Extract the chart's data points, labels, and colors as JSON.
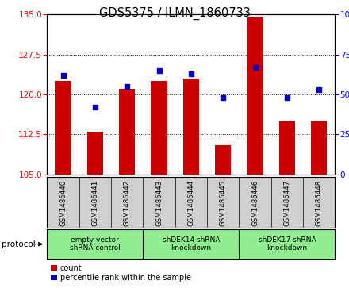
{
  "title": "GDS5375 / ILMN_1860733",
  "samples": [
    "GSM1486440",
    "GSM1486441",
    "GSM1486442",
    "GSM1486443",
    "GSM1486444",
    "GSM1486445",
    "GSM1486446",
    "GSM1486447",
    "GSM1486448"
  ],
  "count_values": [
    122.5,
    113.0,
    121.0,
    122.5,
    123.0,
    110.5,
    134.5,
    115.0,
    115.0
  ],
  "percentile_values": [
    62,
    42,
    55,
    65,
    63,
    48,
    67,
    48,
    53
  ],
  "ylim_left": [
    105,
    135
  ],
  "ylim_right": [
    0,
    100
  ],
  "yticks_left": [
    105,
    112.5,
    120,
    127.5,
    135
  ],
  "yticks_right": [
    0,
    25,
    50,
    75,
    100
  ],
  "groups": [
    {
      "label": "empty vector\nshRNA control",
      "start": 0,
      "end": 3
    },
    {
      "label": "shDEK14 shRNA\nknockdown",
      "start": 3,
      "end": 6
    },
    {
      "label": "shDEK17 shRNA\nknockdown",
      "start": 6,
      "end": 9
    }
  ],
  "group_color": "#90EE90",
  "bar_color": "#cc0000",
  "dot_color": "#0000cc",
  "bar_width": 0.5,
  "label_bg_color": "#d0d0d0",
  "legend_count_label": "count",
  "legend_percentile_label": "percentile rank within the sample",
  "protocol_label": "protocol"
}
